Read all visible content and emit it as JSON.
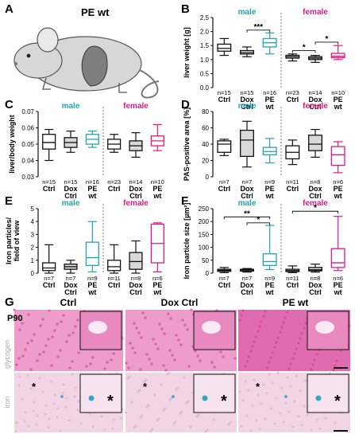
{
  "colors": {
    "male": "#21a3b8",
    "female": "#e2187f",
    "black": "#111111",
    "pink_tissue": "#d9569c"
  },
  "panel_a": {
    "letter": "A",
    "title": "PE wt"
  },
  "group_labels": {
    "male_ctrl": [
      "n=15",
      "Ctrl"
    ]
  },
  "chart_data": [
    {
      "id": "B",
      "type": "box",
      "ylabel": "liver weight [g]",
      "yticks": [
        "0.0",
        "0.5",
        "1.0",
        "1.5",
        "2.0",
        "2.5"
      ],
      "ylim": [
        0,
        2.5
      ],
      "sex_labels": {
        "male": "male",
        "female": "female"
      },
      "categories": [
        {
          "n": "n=15",
          "l1": "Ctrl",
          "l2": "",
          "sex": "male",
          "color": "black",
          "fill": "#ffffff",
          "box": [
            1.15,
            1.3,
            1.4,
            1.55,
            1.75
          ]
        },
        {
          "n": "n=15",
          "l1": "Dox",
          "l2": "Ctrl",
          "sex": "male",
          "color": "black",
          "fill": "#ffffff",
          "box": [
            1.1,
            1.2,
            1.25,
            1.32,
            1.45
          ]
        },
        {
          "n": "n=16",
          "l1": "PE",
          "l2": "wt",
          "sex": "male",
          "color": "male",
          "fill": "#ffffff",
          "box": [
            1.2,
            1.45,
            1.6,
            1.75,
            1.95
          ]
        },
        {
          "n": "n=23",
          "l1": "Ctrl",
          "l2": "",
          "sex": "female",
          "color": "black",
          "fill": "#ffffff",
          "box": [
            0.95,
            1.05,
            1.1,
            1.15,
            1.2
          ]
        },
        {
          "n": "n=14",
          "l1": "Dox",
          "l2": "Ctrl",
          "sex": "female",
          "color": "black",
          "fill": "#ffffff",
          "box": [
            0.9,
            1.0,
            1.05,
            1.1,
            1.15
          ]
        },
        {
          "n": "n=10",
          "l1": "PE",
          "l2": "wt",
          "sex": "female",
          "color": "female",
          "fill": "#ffffff",
          "box": [
            1.0,
            1.07,
            1.12,
            1.22,
            1.5
          ]
        }
      ],
      "significance": [
        {
          "from": 1,
          "to": 2,
          "label": "***",
          "y": 2.05
        },
        {
          "from": 3,
          "to": 4,
          "label": "*",
          "y": 1.32
        },
        {
          "from": 4,
          "to": 5,
          "label": "*",
          "y": 1.62
        }
      ]
    },
    {
      "id": "C",
      "type": "box",
      "ylabel": "liver/body weight",
      "yticks": [
        "0.03",
        "0.04",
        "0.05",
        "0.06",
        "0.07"
      ],
      "ylim": [
        0.03,
        0.07
      ],
      "sex_labels": {
        "male": "male",
        "female": "female"
      },
      "categories": [
        {
          "n": "n=15",
          "l1": "Ctrl",
          "l2": "",
          "sex": "male",
          "color": "black",
          "fill": "#ffffff",
          "box": [
            0.04,
            0.047,
            0.051,
            0.056,
            0.059
          ]
        },
        {
          "n": "n=15",
          "l1": "Dox",
          "l2": "Ctrl",
          "sex": "male",
          "color": "black",
          "fill": "#d9d9d9",
          "box": [
            0.045,
            0.048,
            0.051,
            0.054,
            0.058
          ]
        },
        {
          "n": "n=16",
          "l1": "PE",
          "l2": "wt",
          "sex": "male",
          "color": "male",
          "fill": "#ffffff",
          "box": [
            0.048,
            0.05,
            0.053,
            0.056,
            0.058
          ]
        },
        {
          "n": "n=23",
          "l1": "Ctrl",
          "l2": "",
          "sex": "female",
          "color": "black",
          "fill": "#ffffff",
          "box": [
            0.045,
            0.047,
            0.05,
            0.053,
            0.056
          ]
        },
        {
          "n": "n=14",
          "l1": "Dox",
          "l2": "Ctrl",
          "sex": "female",
          "color": "black",
          "fill": "#d9d9d9",
          "box": [
            0.042,
            0.046,
            0.049,
            0.052,
            0.057
          ]
        },
        {
          "n": "n=10",
          "l1": "PE",
          "l2": "wt",
          "sex": "female",
          "color": "female",
          "fill": "#ffffff",
          "box": [
            0.046,
            0.049,
            0.052,
            0.055,
            0.062
          ]
        }
      ],
      "significance": []
    },
    {
      "id": "D",
      "type": "box",
      "ylabel": "PAS-positive area [%]",
      "yticks": [
        "0",
        "20",
        "40",
        "60",
        "80"
      ],
      "ylim": [
        0,
        80
      ],
      "sex_labels": {
        "male": "male",
        "female": "female"
      },
      "categories": [
        {
          "n": "n=7",
          "l1": "Ctrl",
          "l2": "",
          "sex": "male",
          "color": "black",
          "fill": "#ffffff",
          "box": [
            26,
            30,
            40,
            44,
            46
          ]
        },
        {
          "n": "n=7",
          "l1": "Dox",
          "l2": "Ctrl",
          "sex": "male",
          "color": "black",
          "fill": "#d9d9d9",
          "box": [
            12,
            25,
            45,
            57,
            68
          ]
        },
        {
          "n": "n=9",
          "l1": "PE",
          "l2": "wt",
          "sex": "male",
          "color": "male",
          "fill": "#ffffff",
          "box": [
            17,
            27,
            31,
            36,
            47
          ]
        },
        {
          "n": "n=11",
          "l1": "Ctrl",
          "l2": "",
          "sex": "female",
          "color": "black",
          "fill": "#ffffff",
          "box": [
            15,
            22,
            30,
            38,
            45
          ]
        },
        {
          "n": "n=8",
          "l1": "Dox",
          "l2": "Ctrl",
          "sex": "female",
          "color": "black",
          "fill": "#d9d9d9",
          "box": [
            24,
            32,
            40,
            51,
            58
          ]
        },
        {
          "n": "n=6",
          "l1": "PE",
          "l2": "wt",
          "sex": "female",
          "color": "female",
          "fill": "#ffffff",
          "box": [
            5,
            14,
            27,
            37,
            43
          ]
        }
      ],
      "significance": []
    },
    {
      "id": "E",
      "type": "box",
      "ylabel": "Iron particles/ field of view",
      "yticks": [
        "0",
        "1",
        "2",
        "3",
        "4",
        "5"
      ],
      "ylim": [
        0,
        5
      ],
      "sex_labels": {
        "male": "male",
        "female": "female"
      },
      "categories": [
        {
          "n": "n=7",
          "l1": "Ctrl",
          "l2": "",
          "sex": "male",
          "color": "black",
          "fill": "#ffffff",
          "box": [
            0.0,
            0.2,
            0.4,
            0.8,
            2.2
          ]
        },
        {
          "n": "n=7",
          "l1": "Dox",
          "l2": "Ctrl",
          "sex": "male",
          "color": "black",
          "fill": "#d9d9d9",
          "box": [
            0.0,
            0.3,
            0.5,
            0.7,
            1.0
          ]
        },
        {
          "n": "n=9",
          "l1": "PE",
          "l2": "wt",
          "sex": "male",
          "color": "male",
          "fill": "#ffffff",
          "box": [
            0.1,
            0.6,
            1.2,
            2.4,
            4.0
          ]
        },
        {
          "n": "n=11",
          "l1": "Ctrl",
          "l2": "",
          "sex": "female",
          "color": "black",
          "fill": "#ffffff",
          "box": [
            0.0,
            0.2,
            0.5,
            1.0,
            2.2
          ]
        },
        {
          "n": "n=8",
          "l1": "Dox",
          "l2": "Ctrl",
          "sex": "female",
          "color": "black",
          "fill": "#d9d9d9",
          "box": [
            0.0,
            0.3,
            0.9,
            1.6,
            2.5
          ]
        },
        {
          "n": "n=6",
          "l1": "PE",
          "l2": "wt",
          "sex": "female",
          "color": "female",
          "fill": "#ffffff",
          "box": [
            0.1,
            0.8,
            2.3,
            3.8,
            3.9
          ]
        }
      ],
      "significance": []
    },
    {
      "id": "F",
      "type": "box",
      "ylabel": "Iron particle size [µm²]",
      "yticks": [
        "0",
        "50",
        "100",
        "150",
        "200",
        "250"
      ],
      "ylim": [
        0,
        250
      ],
      "sex_labels": {
        "male": "male",
        "female": "female"
      },
      "categories": [
        {
          "n": "n=7",
          "l1": "Ctrl",
          "l2": "",
          "sex": "male",
          "color": "black",
          "fill": "#ffffff",
          "box": [
            2,
            7,
            11,
            15,
            22
          ]
        },
        {
          "n": "n=7",
          "l1": "Dox",
          "l2": "Ctrl",
          "sex": "male",
          "color": "black",
          "fill": "#d9d9d9",
          "box": [
            4,
            8,
            12,
            15,
            18
          ]
        },
        {
          "n": "n=9",
          "l1": "PE",
          "l2": "wt",
          "sex": "male",
          "color": "male",
          "fill": "#ffffff",
          "box": [
            14,
            30,
            45,
            75,
            185
          ]
        },
        {
          "n": "n=11",
          "l1": "Ctrl",
          "l2": "",
          "sex": "female",
          "color": "black",
          "fill": "#ffffff",
          "box": [
            2,
            6,
            10,
            15,
            28
          ]
        },
        {
          "n": "n=8",
          "l1": "Dox",
          "l2": "Ctrl",
          "sex": "female",
          "color": "black",
          "fill": "#d9d9d9",
          "box": [
            4,
            9,
            13,
            22,
            35
          ]
        },
        {
          "n": "n=6",
          "l1": "PE",
          "l2": "wt",
          "sex": "female",
          "color": "female",
          "fill": "#ffffff",
          "box": [
            10,
            22,
            40,
            95,
            220
          ]
        }
      ],
      "significance": [
        {
          "from": 0,
          "to": 2,
          "label": "**",
          "y": 218
        },
        {
          "from": 1,
          "to": 2,
          "label": "*",
          "y": 195
        },
        {
          "from": 3,
          "to": 5,
          "label": "*",
          "y": 240
        }
      ]
    }
  ],
  "panel_g": {
    "letter": "G",
    "columns": [
      "Ctrl",
      "Dox Ctrl",
      "PE wt"
    ],
    "age_label": "P90",
    "row_labels": [
      "glycogen",
      "iron"
    ],
    "marker": "*"
  }
}
